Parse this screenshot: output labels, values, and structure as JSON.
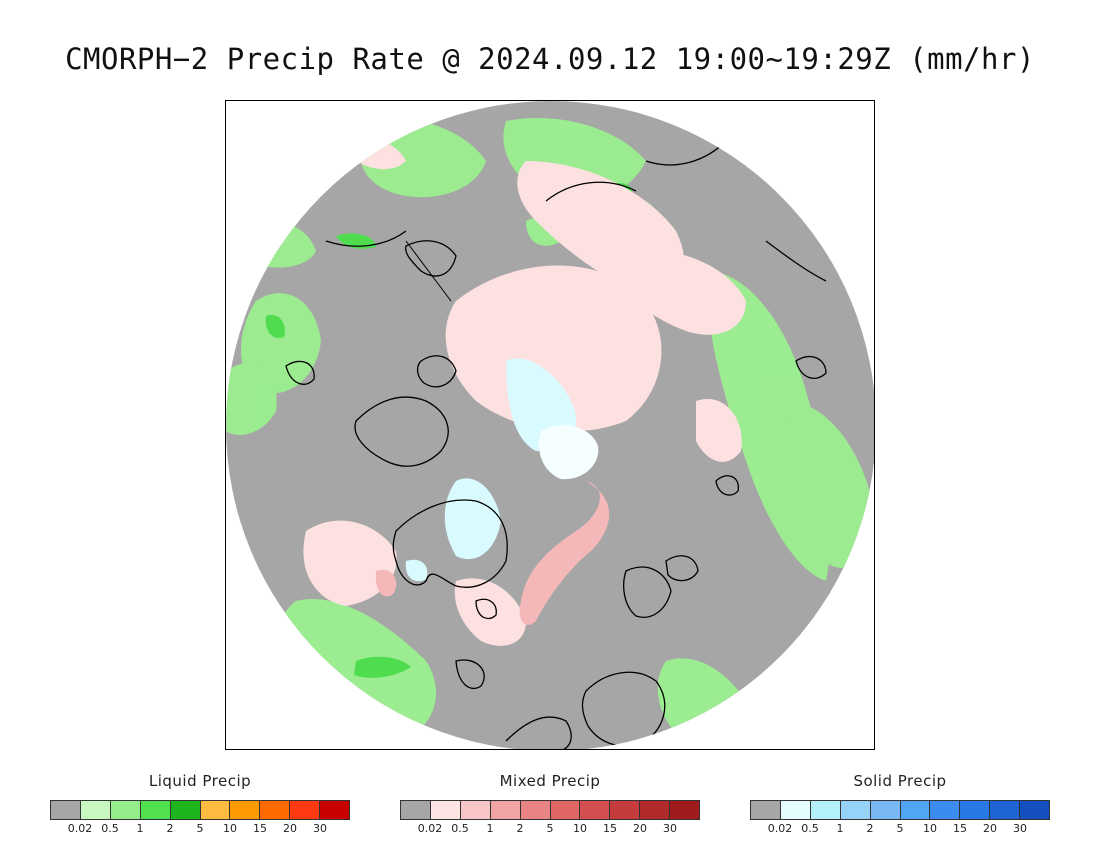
{
  "title": "CMORPH−2 Precip Rate @ 2024.09.12 19:00~19:29Z (mm/hr)",
  "map": {
    "background_color": "#a6a6a6",
    "ocean_outside_color": "#ffffff",
    "coastline_color": "#000000",
    "precip_colors": {
      "light_green": "#b9f7b0",
      "green": "#86ed7b",
      "pink": "#fde2e2",
      "pink_dark": "#f6b9b9",
      "pink_red": "#ee9a9a",
      "light_cyan": "#dcfbff",
      "white_snow": "#f4feff"
    }
  },
  "legends": [
    {
      "title": "Liquid Precip",
      "colors": [
        "#a6a6a6",
        "#c8f8c0",
        "#96ee8a",
        "#50e050",
        "#1eb41e",
        "#ffbb40",
        "#ff9a00",
        "#ff6a00",
        "#ff3a10",
        "#c80000"
      ],
      "ticks": [
        "0.02",
        "0.5",
        "1",
        "2",
        "5",
        "10",
        "15",
        "20",
        "30"
      ]
    },
    {
      "title": "Mixed Precip",
      "colors": [
        "#a6a6a6",
        "#ffe4e4",
        "#f8c6c6",
        "#f0a4a4",
        "#e88484",
        "#e06666",
        "#d45050",
        "#c43c3c",
        "#b02a2a",
        "#a01c1c"
      ],
      "ticks": [
        "0.02",
        "0.5",
        "1",
        "2",
        "5",
        "10",
        "15",
        "20",
        "30"
      ]
    },
    {
      "title": "Solid Precip",
      "colors": [
        "#a6a6a6",
        "#e4feff",
        "#b4f0fa",
        "#96d2fa",
        "#78b9f5",
        "#50a5f5",
        "#3c8cf0",
        "#2878e6",
        "#1e64d2",
        "#1450be"
      ],
      "ticks": [
        "0.02",
        "0.5",
        "1",
        "2",
        "5",
        "10",
        "15",
        "20",
        "30"
      ]
    }
  ]
}
